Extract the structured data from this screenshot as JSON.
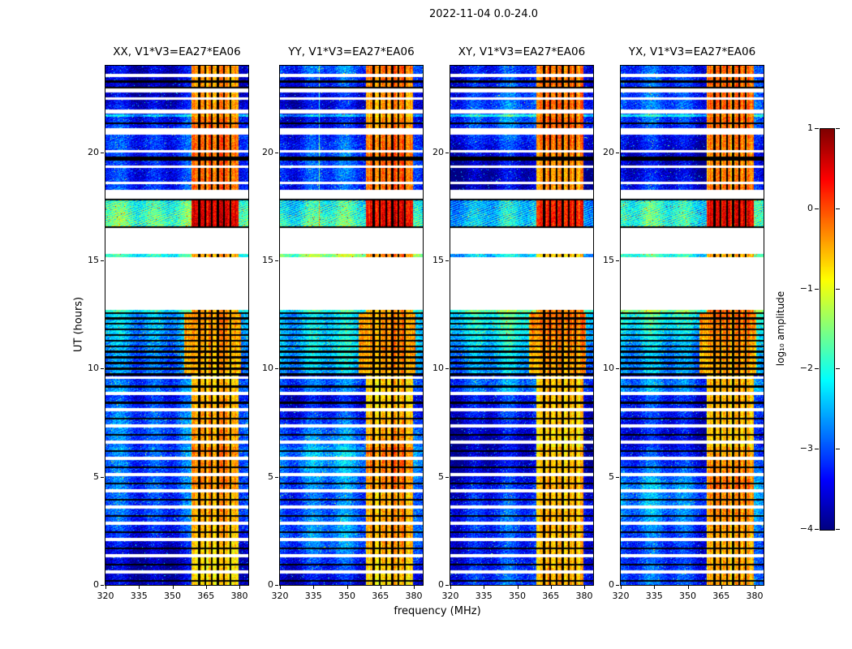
{
  "chart_data": {
    "type": "heatmap",
    "title": "2022-11-04 0.0-24.0",
    "xlabel": "frequency (MHz)",
    "ylabel": "UT (hours)",
    "x_range": [
      320,
      384
    ],
    "y_range": [
      0,
      24
    ],
    "x_ticks": [
      320,
      335,
      350,
      365,
      380
    ],
    "y_ticks": [
      0,
      5,
      10,
      15,
      20
    ],
    "panels": [
      {
        "title": "XX, V1*V3=EA27*EA06",
        "seed": 101,
        "base_offset": 0.0,
        "rfi_offset": 0.0
      },
      {
        "title": "YY, V1*V3=EA27*EA06",
        "seed": 202,
        "base_offset": 0.05,
        "rfi_offset": 0.0,
        "extra_line": {
          "freq": 337.5,
          "boost": 1.4,
          "t_min": 16.6
        }
      },
      {
        "title": "XY, V1*V3=EA27*EA06",
        "seed": 303,
        "base_offset": -0.2,
        "rfi_offset": -0.1
      },
      {
        "title": "YX, V1*V3=EA27*EA06",
        "seed": 404,
        "base_offset": -0.05,
        "rfi_offset": 0.0
      }
    ],
    "colorbar": {
      "label": "log₁₀ amplitude",
      "range": [
        -4,
        1
      ],
      "ticks": [
        1,
        0,
        -1,
        -2,
        -3,
        -4
      ],
      "colormap": "jet"
    },
    "features": {
      "background_level": -3.2,
      "rfi_band": {
        "freq_range": [
          358.5,
          379.5
        ],
        "typical_level": -0.55
      },
      "rfi_dead_channels_mhz": [
        361.8,
        364.6,
        367.4,
        370.2,
        373.0,
        375.8
      ],
      "no_data_gaps_hours": [
        [
          12.72,
          15.18
        ],
        [
          15.32,
          16.5
        ],
        [
          17.88,
          18.28
        ],
        [
          20.82,
          21.12
        ],
        [
          21.8,
          21.98
        ],
        [
          22.8,
          22.96
        ],
        [
          23.5,
          23.64
        ],
        [
          18.56,
          18.66
        ],
        [
          19.3,
          19.4
        ],
        [
          20.0,
          20.1
        ],
        [
          22.45,
          22.55
        ],
        [
          0.55,
          0.68
        ],
        [
          1.3,
          1.43
        ],
        [
          2.05,
          2.18
        ],
        [
          2.8,
          2.93
        ],
        [
          3.55,
          3.68
        ],
        [
          4.3,
          4.43
        ],
        [
          5.05,
          5.18
        ],
        [
          5.8,
          5.93
        ],
        [
          6.55,
          6.68
        ],
        [
          7.3,
          7.43
        ],
        [
          8.05,
          8.18
        ],
        [
          8.8,
          8.93
        ],
        [
          9.55,
          9.66
        ]
      ],
      "flagged_rows_hours": [
        [
          0.2,
          0.05
        ],
        [
          0.95,
          0.05
        ],
        [
          1.7,
          0.05
        ],
        [
          2.45,
          0.05
        ],
        [
          3.2,
          0.05
        ],
        [
          3.95,
          0.05
        ],
        [
          4.7,
          0.05
        ],
        [
          5.45,
          0.05
        ],
        [
          6.2,
          0.05
        ],
        [
          6.95,
          0.05
        ],
        [
          7.7,
          0.05
        ],
        [
          8.45,
          0.05
        ],
        [
          9.2,
          0.05
        ],
        [
          16.55,
          0.06
        ],
        [
          17.84,
          0.045
        ],
        [
          19.72,
          0.09
        ],
        [
          21.35,
          0.04
        ],
        [
          23.0,
          0.04
        ],
        [
          23.28,
          0.05
        ]
      ],
      "segments": [
        {
          "t_range": [
            15.18,
            15.32
          ],
          "base": -2.0,
          "rfi": -0.5
        },
        {
          "t_range": [
            12.62,
            12.72
          ],
          "base": -1.9,
          "rfi": -0.4
        },
        {
          "t_range": [
            21.66,
            21.76
          ],
          "base": -2.2,
          "rfi": -0.4
        },
        {
          "t_range": [
            16.5,
            17.82
          ],
          "base": -2.1,
          "rfi": 0.35,
          "striped": true
        },
        {
          "t_range": [
            9.7,
            12.62
          ],
          "base": -2.35,
          "rfi": -0.35,
          "band": [
            355.0,
            380.5
          ],
          "dense": true
        },
        {
          "t_range": [
            8.85,
            9.65
          ],
          "base": -2.6,
          "rfi": -0.5
        },
        {
          "t_range": [
            4.4,
            6.4
          ],
          "base": -3.0,
          "rfi": -0.35
        },
        {
          "t_range": [
            18.28,
            20.82
          ],
          "base": -3.15,
          "rfi": -0.15
        },
        {
          "t_range": [
            21.12,
            24.01
          ],
          "base": -3.15,
          "rfi": -0.2
        }
      ],
      "dense_flag_region": {
        "t_range": [
          9.7,
          12.62
        ],
        "period": 0.26,
        "width": 0.1
      }
    }
  }
}
